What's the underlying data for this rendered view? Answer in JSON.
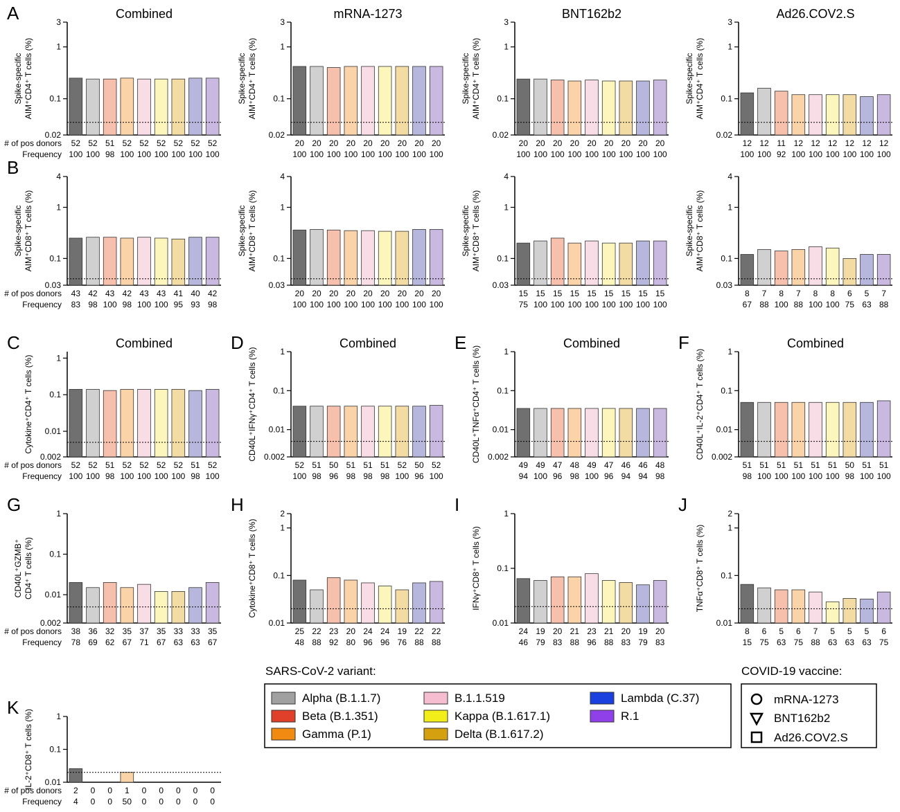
{
  "chart_data": [
    {
      "type": "bar",
      "letter": "A",
      "title": "Combined",
      "ylabel": [
        "Spike-specific",
        "AIM⁺CD4⁺ T cells  (%)"
      ],
      "log": true,
      "ylim": [
        0.02,
        3
      ],
      "yticks": [
        0.02,
        0.1,
        1,
        3
      ],
      "lod": 0.035,
      "colors": [
        "#707070",
        "#d0d0d0",
        "#f6c0ad",
        "#fbd3a8",
        "#f9dde6",
        "#fcf6bc",
        "#f3dca4",
        "#b7b7dd",
        "#c9b9e0"
      ],
      "values": [
        0.25,
        0.24,
        0.24,
        0.25,
        0.24,
        0.24,
        0.24,
        0.25,
        0.25
      ],
      "count_labels": [
        "# of pos donors",
        "Frequency"
      ],
      "pos_donors": [
        52,
        52,
        51,
        52,
        52,
        52,
        52,
        52,
        52
      ],
      "frequency": [
        100,
        100,
        98,
        100,
        100,
        100,
        100,
        100,
        100
      ]
    },
    {
      "type": "bar",
      "title": "mRNA-1273",
      "ylabel": [
        "Spike-specific",
        "AIM⁺CD4⁺ T cells  (%)"
      ],
      "log": true,
      "ylim": [
        0.02,
        3
      ],
      "yticks": [
        0.02,
        0.1,
        1,
        3
      ],
      "lod": 0.035,
      "colors": [
        "#707070",
        "#d0d0d0",
        "#f6c0ad",
        "#fbd3a8",
        "#f9dde6",
        "#fcf6bc",
        "#f3dca4",
        "#b7b7dd",
        "#c9b9e0"
      ],
      "values": [
        0.42,
        0.42,
        0.4,
        0.42,
        0.42,
        0.42,
        0.42,
        0.42,
        0.42
      ],
      "pos_donors": [
        20,
        20,
        20,
        20,
        20,
        20,
        20,
        20,
        20
      ],
      "frequency": [
        100,
        100,
        100,
        100,
        100,
        100,
        100,
        100,
        100
      ]
    },
    {
      "type": "bar",
      "title": "BNT162b2",
      "ylabel": [
        "Spike-specific",
        "AIM⁺CD4⁺ T cells  (%)"
      ],
      "log": true,
      "ylim": [
        0.02,
        3
      ],
      "yticks": [
        0.02,
        0.1,
        1,
        3
      ],
      "lod": 0.035,
      "colors": [
        "#707070",
        "#d0d0d0",
        "#f6c0ad",
        "#fbd3a8",
        "#f9dde6",
        "#fcf6bc",
        "#f3dca4",
        "#b7b7dd",
        "#c9b9e0"
      ],
      "values": [
        0.24,
        0.24,
        0.23,
        0.22,
        0.23,
        0.22,
        0.22,
        0.22,
        0.23
      ],
      "pos_donors": [
        20,
        20,
        20,
        20,
        20,
        20,
        20,
        20,
        20
      ],
      "frequency": [
        100,
        100,
        100,
        100,
        100,
        100,
        100,
        100,
        100
      ]
    },
    {
      "type": "bar",
      "title": "Ad26.COV2.S",
      "ylabel": [
        "Spike-specific",
        "AIM⁺CD4⁺ T cells  (%)"
      ],
      "log": true,
      "ylim": [
        0.02,
        3
      ],
      "yticks": [
        0.02,
        0.1,
        1,
        3
      ],
      "lod": 0.035,
      "colors": [
        "#707070",
        "#d0d0d0",
        "#f6c0ad",
        "#fbd3a8",
        "#f9dde6",
        "#fcf6bc",
        "#f3dca4",
        "#b7b7dd",
        "#c9b9e0"
      ],
      "values": [
        0.13,
        0.16,
        0.14,
        0.12,
        0.12,
        0.12,
        0.12,
        0.11,
        0.12
      ],
      "pos_donors": [
        12,
        12,
        11,
        12,
        12,
        12,
        12,
        12,
        12
      ],
      "frequency": [
        100,
        100,
        92,
        100,
        100,
        100,
        100,
        100,
        100
      ]
    },
    {
      "type": "bar",
      "letter": "B",
      "ylabel": [
        "Spike-specific",
        "AIM⁺CD8⁺ T cells  (%)"
      ],
      "log": true,
      "ylim": [
        0.03,
        4
      ],
      "yticks": [
        0.03,
        0.1,
        1,
        4
      ],
      "lod": 0.04,
      "colors": [
        "#707070",
        "#d0d0d0",
        "#f6c0ad",
        "#fbd3a8",
        "#f9dde6",
        "#fcf6bc",
        "#f3dca4",
        "#b7b7dd",
        "#c9b9e0"
      ],
      "values": [
        0.25,
        0.26,
        0.26,
        0.25,
        0.26,
        0.25,
        0.24,
        0.26,
        0.26
      ],
      "count_labels": [
        "# of pos donors",
        "Frequency"
      ],
      "pos_donors": [
        43,
        42,
        43,
        42,
        43,
        43,
        41,
        40,
        42
      ],
      "frequency": [
        83,
        98,
        100,
        98,
        100,
        100,
        95,
        93,
        98
      ]
    },
    {
      "type": "bar",
      "ylabel": [
        "Spike-specific",
        "AIM⁺CD8⁺ T cells  (%)"
      ],
      "log": true,
      "ylim": [
        0.03,
        4
      ],
      "yticks": [
        0.03,
        0.1,
        1,
        4
      ],
      "lod": 0.04,
      "colors": [
        "#707070",
        "#d0d0d0",
        "#f6c0ad",
        "#fbd3a8",
        "#f9dde6",
        "#fcf6bc",
        "#f3dca4",
        "#b7b7dd",
        "#c9b9e0"
      ],
      "values": [
        0.36,
        0.37,
        0.36,
        0.35,
        0.35,
        0.34,
        0.34,
        0.37,
        0.37
      ],
      "pos_donors": [
        20,
        20,
        20,
        20,
        20,
        20,
        20,
        20,
        20
      ],
      "frequency": [
        100,
        100,
        100,
        100,
        100,
        100,
        100,
        100,
        100
      ]
    },
    {
      "type": "bar",
      "ylabel": [
        "Spike-specific",
        "AIM⁺CD8⁺ T cells  (%)"
      ],
      "log": true,
      "ylim": [
        0.03,
        4
      ],
      "yticks": [
        0.03,
        0.1,
        1,
        4
      ],
      "lod": 0.04,
      "colors": [
        "#707070",
        "#d0d0d0",
        "#f6c0ad",
        "#fbd3a8",
        "#f9dde6",
        "#fcf6bc",
        "#f3dca4",
        "#b7b7dd",
        "#c9b9e0"
      ],
      "values": [
        0.2,
        0.22,
        0.25,
        0.2,
        0.22,
        0.2,
        0.2,
        0.22,
        0.22
      ],
      "pos_donors": [
        15,
        15,
        15,
        15,
        15,
        15,
        15,
        15,
        15
      ],
      "frequency": [
        75,
        100,
        100,
        100,
        100,
        100,
        100,
        100,
        100
      ]
    },
    {
      "type": "bar",
      "ylabel": [
        "Spike-specific",
        "AIM⁺CD8⁺ T cells  (%)"
      ],
      "log": true,
      "ylim": [
        0.03,
        4
      ],
      "yticks": [
        0.03,
        0.1,
        1,
        4
      ],
      "lod": 0.04,
      "colors": [
        "#707070",
        "#d0d0d0",
        "#f6c0ad",
        "#fbd3a8",
        "#f9dde6",
        "#fcf6bc",
        "#f3dca4",
        "#b7b7dd",
        "#c9b9e0"
      ],
      "values": [
        0.12,
        0.15,
        0.14,
        0.15,
        0.17,
        0.16,
        0.1,
        0.12,
        0.12
      ],
      "pos_donors": [
        8,
        7,
        8,
        7,
        8,
        8,
        6,
        5,
        7
      ],
      "frequency": [
        67,
        88,
        100,
        88,
        100,
        100,
        75,
        63,
        88
      ]
    },
    {
      "type": "bar",
      "letter": "C",
      "title": "Combined",
      "ylabel": [
        "Cytokine⁺CD4⁺ T cells (%)"
      ],
      "log": true,
      "ylim": [
        0.002,
        1.5
      ],
      "yticks": [
        0.002,
        0.01,
        0.1,
        1
      ],
      "lod": 0.005,
      "colors": [
        "#707070",
        "#d0d0d0",
        "#f6c0ad",
        "#fbd3a8",
        "#f9dde6",
        "#fcf6bc",
        "#f3dca4",
        "#b7b7dd",
        "#c9b9e0"
      ],
      "values": [
        0.14,
        0.14,
        0.13,
        0.14,
        0.14,
        0.14,
        0.14,
        0.13,
        0.14
      ],
      "count_labels": [
        "# of pos donors",
        "Frequency"
      ],
      "pos_donors": [
        52,
        52,
        51,
        52,
        52,
        52,
        52,
        51,
        52
      ],
      "frequency": [
        100,
        100,
        98,
        100,
        100,
        100,
        100,
        98,
        100
      ]
    },
    {
      "type": "bar",
      "letter": "D",
      "title": "Combined",
      "ylabel": [
        "CD40L⁺IFNγ⁺CD4⁺ T cells (%)"
      ],
      "log": true,
      "ylim": [
        0.002,
        1
      ],
      "yticks": [
        0.002,
        0.01,
        0.1,
        1
      ],
      "lod": 0.005,
      "colors": [
        "#707070",
        "#d0d0d0",
        "#f6c0ad",
        "#fbd3a8",
        "#f9dde6",
        "#fcf6bc",
        "#f3dca4",
        "#b7b7dd",
        "#c9b9e0"
      ],
      "values": [
        0.04,
        0.04,
        0.04,
        0.04,
        0.04,
        0.04,
        0.04,
        0.04,
        0.042
      ],
      "pos_donors": [
        52,
        51,
        50,
        51,
        51,
        51,
        52,
        50,
        52
      ],
      "frequency": [
        100,
        98,
        96,
        98,
        98,
        98,
        100,
        96,
        100
      ]
    },
    {
      "type": "bar",
      "letter": "E",
      "title": "Combined",
      "ylabel": [
        "CD40L⁺TNFα⁺CD4⁺ T cells (%)"
      ],
      "log": true,
      "ylim": [
        0.002,
        1
      ],
      "yticks": [
        0.002,
        0.01,
        0.1,
        1
      ],
      "lod": 0.005,
      "colors": [
        "#707070",
        "#d0d0d0",
        "#f6c0ad",
        "#fbd3a8",
        "#f9dde6",
        "#fcf6bc",
        "#f3dca4",
        "#b7b7dd",
        "#c9b9e0"
      ],
      "values": [
        0.035,
        0.035,
        0.035,
        0.035,
        0.035,
        0.035,
        0.035,
        0.035,
        0.035
      ],
      "pos_donors": [
        49,
        49,
        47,
        48,
        49,
        47,
        46,
        46,
        48
      ],
      "frequency": [
        94,
        100,
        96,
        98,
        100,
        96,
        94,
        94,
        98
      ]
    },
    {
      "type": "bar",
      "letter": "F",
      "title": "Combined",
      "ylabel": [
        "CD40L⁺IL-2⁺CD4⁺ T cells (%)"
      ],
      "log": true,
      "ylim": [
        0.002,
        1
      ],
      "yticks": [
        0.002,
        0.01,
        0.1,
        1
      ],
      "lod": 0.005,
      "colors": [
        "#707070",
        "#d0d0d0",
        "#f6c0ad",
        "#fbd3a8",
        "#f9dde6",
        "#fcf6bc",
        "#f3dca4",
        "#b7b7dd",
        "#c9b9e0"
      ],
      "values": [
        0.05,
        0.05,
        0.05,
        0.05,
        0.05,
        0.05,
        0.05,
        0.05,
        0.055
      ],
      "pos_donors": [
        51,
        51,
        51,
        51,
        51,
        51,
        50,
        51,
        51
      ],
      "frequency": [
        98,
        100,
        100,
        100,
        100,
        100,
        98,
        100,
        100
      ]
    },
    {
      "type": "bar",
      "letter": "G",
      "ylabel": [
        "CD40L⁺GZMB⁺",
        "CD4⁺ T cells (%)"
      ],
      "log": true,
      "ylim": [
        0.002,
        1
      ],
      "yticks": [
        0.002,
        0.01,
        0.1,
        1
      ],
      "lod": 0.005,
      "colors": [
        "#707070",
        "#d0d0d0",
        "#f6c0ad",
        "#fbd3a8",
        "#f9dde6",
        "#fcf6bc",
        "#f3dca4",
        "#b7b7dd",
        "#c9b9e0"
      ],
      "values": [
        0.02,
        0.015,
        0.02,
        0.015,
        0.018,
        0.012,
        0.012,
        0.015,
        0.02
      ],
      "count_labels": [
        "# of pos donors",
        "Frequency"
      ],
      "pos_donors": [
        38,
        36,
        32,
        35,
        37,
        35,
        33,
        33,
        35
      ],
      "frequency": [
        78,
        69,
        62,
        67,
        71,
        67,
        63,
        63,
        67
      ]
    },
    {
      "type": "bar",
      "letter": "H",
      "ylabel": [
        "Cytokine⁺CD8⁺ T cells (%)"
      ],
      "log": true,
      "ylim": [
        0.01,
        2
      ],
      "yticks": [
        0.01,
        0.1,
        1,
        2
      ],
      "lod": 0.02,
      "colors": [
        "#707070",
        "#d0d0d0",
        "#f6c0ad",
        "#fbd3a8",
        "#f9dde6",
        "#fcf6bc",
        "#f3dca4",
        "#b7b7dd",
        "#c9b9e0"
      ],
      "values": [
        0.08,
        0.05,
        0.09,
        0.08,
        0.07,
        0.06,
        0.05,
        0.07,
        0.075
      ],
      "pos_donors": [
        25,
        22,
        23,
        20,
        24,
        24,
        19,
        22,
        22
      ],
      "frequency": [
        48,
        88,
        92,
        80,
        96,
        96,
        76,
        88,
        88
      ]
    },
    {
      "type": "bar",
      "letter": "I",
      "ylabel": [
        "IFNγ⁺CD8⁺ T cells (%)"
      ],
      "log": true,
      "ylim": [
        0.01,
        1
      ],
      "yticks": [
        0.01,
        0.1,
        1
      ],
      "lod": 0.02,
      "colors": [
        "#707070",
        "#d0d0d0",
        "#f6c0ad",
        "#fbd3a8",
        "#f9dde6",
        "#fcf6bc",
        "#f3dca4",
        "#b7b7dd",
        "#c9b9e0"
      ],
      "values": [
        0.065,
        0.06,
        0.07,
        0.07,
        0.08,
        0.06,
        0.055,
        0.05,
        0.06
      ],
      "pos_donors": [
        24,
        19,
        20,
        21,
        23,
        21,
        20,
        19,
        20
      ],
      "frequency": [
        46,
        79,
        83,
        88,
        96,
        88,
        83,
        79,
        83
      ]
    },
    {
      "type": "bar",
      "letter": "J",
      "ylabel": [
        "TNFα⁺CD8⁺ T cells (%)"
      ],
      "log": true,
      "ylim": [
        0.01,
        2
      ],
      "yticks": [
        0.01,
        0.1,
        1,
        2
      ],
      "lod": 0.02,
      "colors": [
        "#707070",
        "#d0d0d0",
        "#f6c0ad",
        "#fbd3a8",
        "#f9dde6",
        "#fcf6bc",
        "#f3dca4",
        "#b7b7dd",
        "#c9b9e0"
      ],
      "values": [
        0.065,
        0.055,
        0.05,
        0.05,
        0.045,
        0.028,
        0.033,
        0.032,
        0.045
      ],
      "pos_donors": [
        8,
        6,
        5,
        6,
        7,
        5,
        5,
        5,
        6
      ],
      "frequency": [
        15,
        75,
        63,
        75,
        88,
        63,
        63,
        63,
        75
      ]
    },
    {
      "type": "bar",
      "letter": "K",
      "ylabel": [
        "IL-2⁺CD8⁺ T cells (%)"
      ],
      "log": true,
      "ylim": [
        0.01,
        1
      ],
      "yticks": [
        0.01,
        0.1,
        1
      ],
      "lod": 0.02,
      "colors": [
        "#707070",
        "#d0d0d0",
        "#f6c0ad",
        "#fbd3a8",
        "#f9dde6",
        "#fcf6bc",
        "#f3dca4",
        "#b7b7dd",
        "#c9b9e0"
      ],
      "values": [
        0.026,
        null,
        null,
        0.02,
        null,
        null,
        null,
        null,
        null
      ],
      "count_labels": [
        "# of pos donors",
        "Frequency"
      ],
      "pos_donors": [
        2,
        0,
        0,
        1,
        0,
        0,
        0,
        0,
        0
      ],
      "frequency": [
        4,
        0,
        0,
        50,
        0,
        0,
        0,
        0,
        0
      ]
    }
  ],
  "variant_legend": {
    "title": "SARS-CoV-2 variant:",
    "items": [
      {
        "name": "Alpha (B.1.1.7)",
        "color": "#a0a0a0"
      },
      {
        "name": "Beta (B.1.351)",
        "color": "#e0402a"
      },
      {
        "name": "Gamma (P.1)",
        "color": "#f08a10"
      },
      {
        "name": "B.1.1.519",
        "color": "#f6bcd0"
      },
      {
        "name": "Kappa (B.1.617.1)",
        "color": "#f2ee1a"
      },
      {
        "name": "Delta (B.1.617.2)",
        "color": "#d4a010"
      },
      {
        "name": "Lambda (C.37)",
        "color": "#1a40e0"
      },
      {
        "name": "R.1",
        "color": "#9040e8"
      }
    ]
  },
  "vaccine_legend": {
    "title": "COVID-19 vaccine:",
    "items": [
      "mRNA-1273",
      "BNT162b2",
      "Ad26.COV2.S"
    ]
  }
}
